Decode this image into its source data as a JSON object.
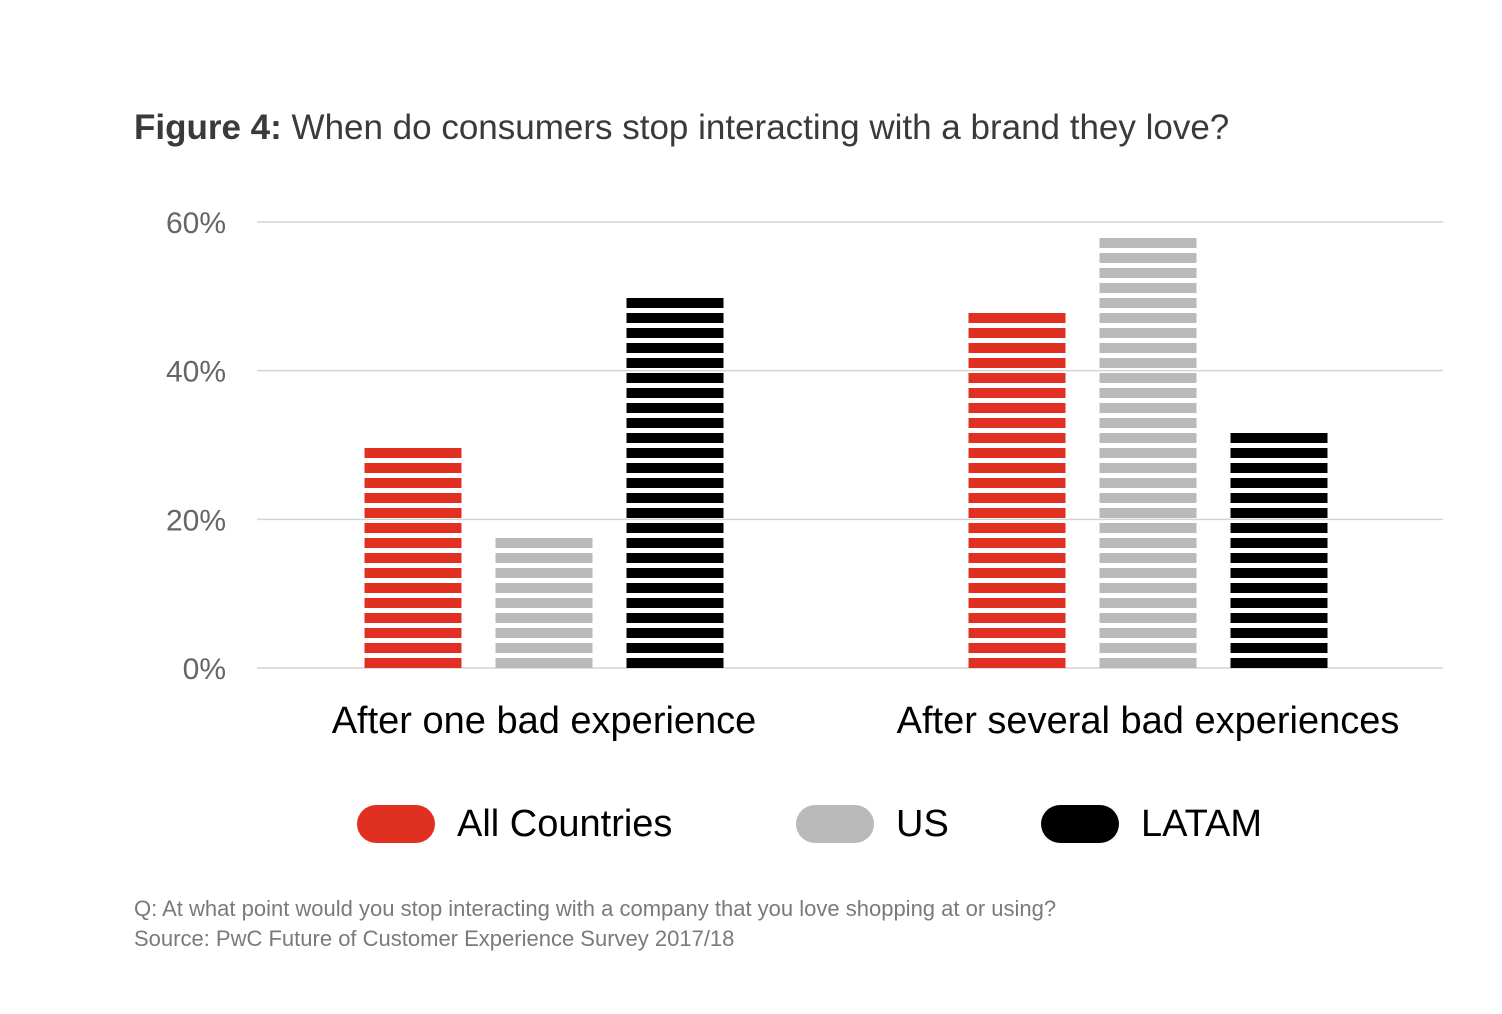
{
  "title": {
    "prefix": "Figure 4:",
    "text": "When do consumers stop interacting with a brand they love?"
  },
  "chart_data": {
    "type": "bar",
    "categories": [
      "After one bad experience",
      "After several bad experiences"
    ],
    "series": [
      {
        "name": "All Countries",
        "values": [
          30,
          48
        ],
        "color": "#e03022"
      },
      {
        "name": "US",
        "values": [
          18,
          58
        ],
        "color": "#b9b9b9"
      },
      {
        "name": "LATAM",
        "values": [
          50,
          32
        ],
        "color": "#000000"
      }
    ],
    "ylim": [
      0,
      60
    ],
    "yticks": [
      0,
      20,
      40,
      60
    ],
    "ytick_labels": [
      "0%",
      "20%",
      "40%",
      "60%"
    ],
    "grid": true,
    "legend": "bottom"
  },
  "legend": {
    "items": [
      {
        "label": "All Countries",
        "color": "#e03022"
      },
      {
        "label": "US",
        "color": "#b9b9b9"
      },
      {
        "label": "LATAM",
        "color": "#000000"
      }
    ]
  },
  "footnote": {
    "question": "Q: At what point would you stop interacting with a company that you love shopping at or using?",
    "source": "Source: PwC Future of Customer Experience Survey 2017/18"
  }
}
